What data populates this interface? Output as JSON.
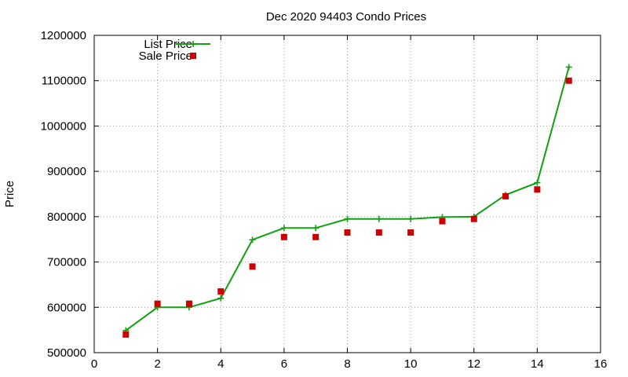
{
  "chart_data": {
    "type": "line",
    "title": "Dec 2020 94403 Condo Prices",
    "xlabel": "",
    "ylabel": "Price",
    "xlim": [
      0,
      16
    ],
    "ylim": [
      500000,
      1200000
    ],
    "xticks": [
      0,
      2,
      4,
      6,
      8,
      10,
      12,
      14,
      16
    ],
    "yticks": [
      500000,
      600000,
      700000,
      800000,
      900000,
      1000000,
      1100000,
      1200000
    ],
    "grid": true,
    "legend_position": "top-left",
    "x": [
      1,
      2,
      3,
      4,
      5,
      6,
      7,
      8,
      9,
      10,
      11,
      12,
      13,
      14,
      15
    ],
    "series": [
      {
        "name": "List Price",
        "style": "line-with-plus-markers",
        "color": "#11a011",
        "values": [
          549000,
          600000,
          600000,
          620000,
          749000,
          775000,
          775000,
          795000,
          795000,
          795000,
          799000,
          800000,
          848000,
          875000,
          1130000
        ]
      },
      {
        "name": "Sale Price",
        "style": "square-markers",
        "color": "#cc0000",
        "values": [
          540000,
          608000,
          608000,
          635000,
          690000,
          755000,
          755000,
          765000,
          765000,
          765000,
          790000,
          795000,
          845000,
          860000,
          1100000
        ]
      }
    ]
  }
}
